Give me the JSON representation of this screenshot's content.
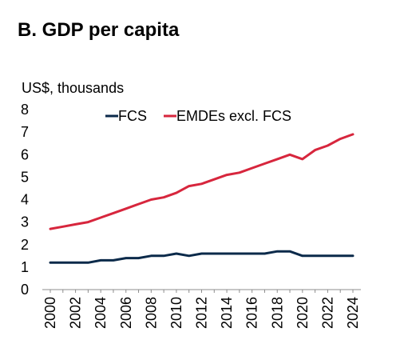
{
  "panel": {
    "title": "B. GDP per capita"
  },
  "chart_data": {
    "type": "line",
    "title": "B. GDP per capita",
    "ylabel": "US$, thousands",
    "xlabel": "",
    "ylim": [
      0,
      8
    ],
    "yticks": [
      "0",
      "1",
      "2",
      "3",
      "4",
      "5",
      "6",
      "7",
      "8"
    ],
    "xlim": [
      2000,
      2024
    ],
    "xticks": [
      "2000",
      "2002",
      "2004",
      "2006",
      "2008",
      "2010",
      "2012",
      "2014",
      "2016",
      "2018",
      "2020",
      "2022",
      "2024"
    ],
    "grid": false,
    "legend_position": "top",
    "x": [
      2000,
      2001,
      2002,
      2003,
      2004,
      2005,
      2006,
      2007,
      2008,
      2009,
      2010,
      2011,
      2012,
      2013,
      2014,
      2015,
      2016,
      2017,
      2018,
      2019,
      2020,
      2021,
      2022,
      2023,
      2024
    ],
    "series": [
      {
        "name": "FCS",
        "color": "#0b2a4a",
        "values": [
          1.2,
          1.2,
          1.2,
          1.2,
          1.3,
          1.3,
          1.4,
          1.4,
          1.5,
          1.5,
          1.6,
          1.5,
          1.6,
          1.6,
          1.6,
          1.6,
          1.6,
          1.6,
          1.7,
          1.7,
          1.5,
          1.5,
          1.5,
          1.5,
          1.5
        ]
      },
      {
        "name": "EMDEs excl. FCS",
        "color": "#d7263d",
        "values": [
          2.7,
          2.8,
          2.9,
          3.0,
          3.2,
          3.4,
          3.6,
          3.8,
          4.0,
          4.1,
          4.3,
          4.6,
          4.7,
          4.9,
          5.1,
          5.2,
          5.4,
          5.6,
          5.8,
          6.0,
          5.8,
          6.2,
          6.4,
          6.7,
          6.9
        ]
      }
    ]
  }
}
